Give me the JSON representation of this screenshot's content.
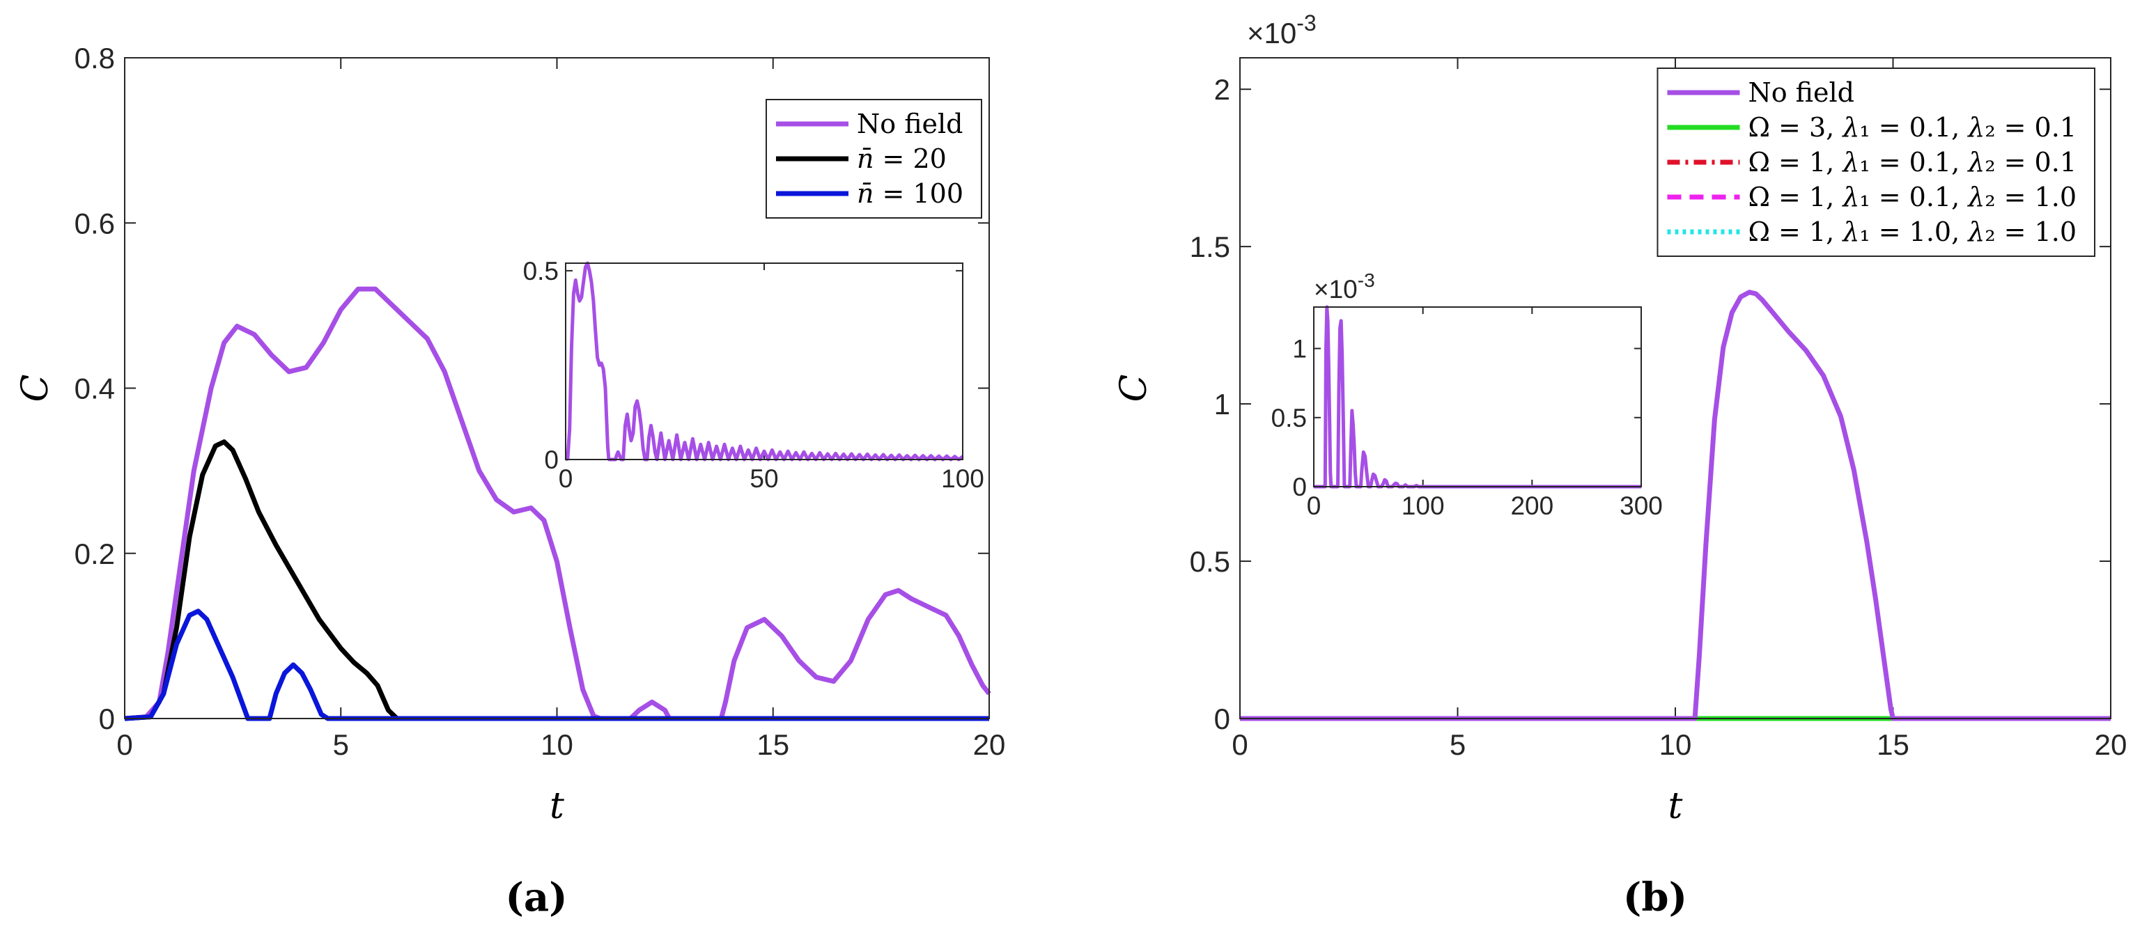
{
  "chart_data": [
    {
      "id": "a",
      "type": "line",
      "panel_label": "(a)",
      "xlabel": "t",
      "ylabel": "C",
      "xlim": [
        0,
        20
      ],
      "ylim": [
        0,
        0.8
      ],
      "xticks": [
        0,
        5,
        10,
        15,
        20
      ],
      "xtick_labels": [
        "0",
        "5",
        "10",
        "15",
        "20"
      ],
      "yticks": [
        0,
        0.2,
        0.4,
        0.6,
        0.8
      ],
      "ytick_labels": [
        "0",
        "0.2",
        "0.4",
        "0.6",
        "0.8"
      ],
      "legend_position": "top-right",
      "series": [
        {
          "name": "No field",
          "label_parts": [
            {
              "t": "No field",
              "it": false
            }
          ],
          "color": "#a64fe6",
          "dash": "",
          "x": [
            0,
            0.5,
            0.8,
            1.0,
            1.3,
            1.6,
            2.0,
            2.3,
            2.6,
            3.0,
            3.4,
            3.8,
            4.2,
            4.6,
            5.0,
            5.4,
            5.8,
            6.2,
            6.6,
            7.0,
            7.4,
            7.8,
            8.2,
            8.6,
            9.0,
            9.4,
            9.7,
            10.0,
            10.3,
            10.6,
            10.85,
            11.0,
            11.7,
            11.9,
            12.2,
            12.5,
            12.6,
            13.8,
            13.9,
            14.1,
            14.4,
            14.8,
            15.2,
            15.6,
            16.0,
            16.4,
            16.8,
            17.2,
            17.6,
            17.9,
            18.2,
            18.6,
            19.0,
            19.3,
            19.6,
            19.85,
            20.0
          ],
          "y": [
            0,
            0.002,
            0.02,
            0.08,
            0.19,
            0.3,
            0.4,
            0.455,
            0.475,
            0.465,
            0.44,
            0.42,
            0.425,
            0.455,
            0.495,
            0.52,
            0.52,
            0.5,
            0.48,
            0.46,
            0.42,
            0.36,
            0.3,
            0.265,
            0.25,
            0.255,
            0.24,
            0.19,
            0.11,
            0.035,
            0.003,
            0,
            0,
            0.01,
            0.02,
            0.01,
            0,
            0,
            0.02,
            0.07,
            0.11,
            0.12,
            0.1,
            0.07,
            0.05,
            0.045,
            0.07,
            0.12,
            0.15,
            0.155,
            0.145,
            0.135,
            0.125,
            0.1,
            0.065,
            0.04,
            0.03
          ]
        },
        {
          "name": "n = 20",
          "label_parts": [
            {
              "t": "n̄",
              "it": true
            },
            {
              "t": " = 20",
              "it": false
            }
          ],
          "color": "#000000",
          "dash": "",
          "x": [
            0,
            0.6,
            0.9,
            1.2,
            1.5,
            1.8,
            2.1,
            2.3,
            2.5,
            2.8,
            3.1,
            3.5,
            4.0,
            4.5,
            5.0,
            5.3,
            5.6,
            5.85,
            6.1,
            6.3,
            20
          ],
          "y": [
            0,
            0.002,
            0.03,
            0.11,
            0.22,
            0.295,
            0.33,
            0.335,
            0.325,
            0.29,
            0.25,
            0.21,
            0.165,
            0.12,
            0.085,
            0.068,
            0.055,
            0.04,
            0.01,
            0,
            0
          ]
        },
        {
          "name": "n = 100",
          "label_parts": [
            {
              "t": "n̄",
              "it": true
            },
            {
              "t": " = 100",
              "it": false
            }
          ],
          "color": "#0a16d9",
          "dash": "",
          "x": [
            0,
            0.6,
            0.9,
            1.2,
            1.5,
            1.7,
            1.9,
            2.2,
            2.5,
            2.85,
            3.0,
            3.35,
            3.5,
            3.7,
            3.9,
            4.1,
            4.3,
            4.55,
            4.7,
            20
          ],
          "y": [
            0,
            0.002,
            0.03,
            0.09,
            0.125,
            0.13,
            0.12,
            0.085,
            0.05,
            0,
            0,
            0,
            0.03,
            0.055,
            0.065,
            0.055,
            0.035,
            0.005,
            0,
            0
          ]
        }
      ],
      "inset": {
        "xlim": [
          0,
          100
        ],
        "ylim": [
          0,
          0.52
        ],
        "xticks": [
          0,
          50,
          100
        ],
        "xtick_labels": [
          "0",
          "50",
          "100"
        ],
        "yticks": [
          0,
          0.5
        ],
        "ytick_labels": [
          "0",
          "0.5"
        ],
        "series": [
          {
            "name": "No field",
            "color": "#a64fe6",
            "x": [
              0,
              0.5,
              1.0,
              1.5,
              2.0,
              2.5,
              3.0,
              3.5,
              4.0,
              4.5,
              5.0,
              5.5,
              6.0,
              6.5,
              7.0,
              7.5,
              8.0,
              8.5,
              9.0,
              9.5,
              10.0,
              10.3,
              10.6,
              10.85,
              11.0,
              12.5,
              12.8,
              13.2,
              13.6,
              14.0,
              14.5,
              15.0,
              15.5,
              16.0,
              16.5,
              17.0,
              17.5,
              18.0,
              18.5,
              19.0,
              19.5,
              20.0,
              20.5,
              21.0,
              21.5,
              22.0,
              22.5,
              23.0,
              24.0,
              25.0,
              26.0,
              27.0,
              28.0,
              29.0,
              30.0,
              31.0,
              32.0,
              33.0,
              34.0,
              35.0,
              36.0,
              37.0,
              38.0,
              39.0,
              40.0,
              41.0,
              42.0,
              43.0,
              44.0,
              45.0,
              46.0,
              47.0,
              48.0,
              49.0,
              50.0,
              51.0,
              52.0,
              53.0,
              54.0,
              55.0,
              56.0,
              57.0,
              58.0,
              59.0,
              60.0,
              61.0,
              62.0,
              63.0,
              64.0,
              65.0,
              66.0,
              67.0,
              68.0,
              69.0,
              70.0,
              71.0,
              72.0,
              73.0,
              74.0,
              75.0,
              76.0,
              77.0,
              78.0,
              79.0,
              80.0,
              81.0,
              82.0,
              83.0,
              84.0,
              85.0,
              86.0,
              87.0,
              88.0,
              89.0,
              90.0,
              91.0,
              92.0,
              93.0,
              94.0,
              95.0,
              96.0,
              97.0,
              98.0,
              99.0,
              100.0
            ],
            "y": [
              0,
              0.002,
              0.08,
              0.3,
              0.44,
              0.475,
              0.44,
              0.42,
              0.43,
              0.47,
              0.51,
              0.52,
              0.5,
              0.47,
              0.42,
              0.34,
              0.27,
              0.25,
              0.255,
              0.24,
              0.19,
              0.11,
              0.035,
              0.003,
              0,
              0,
              0.01,
              0.02,
              0.01,
              0,
              0,
              0.09,
              0.12,
              0.08,
              0.05,
              0.07,
              0.14,
              0.155,
              0.13,
              0.09,
              0.03,
              0,
              0,
              0.06,
              0.09,
              0.06,
              0.02,
              0,
              0.07,
              0,
              0.05,
              0,
              0.065,
              0,
              0.045,
              0,
              0.055,
              0,
              0.04,
              0,
              0.045,
              0,
              0.035,
              0,
              0.04,
              0,
              0.03,
              0,
              0.035,
              0,
              0.025,
              0,
              0.03,
              0,
              0.022,
              0,
              0.025,
              0,
              0.02,
              0,
              0.022,
              0,
              0.018,
              0,
              0.02,
              0,
              0.016,
              0,
              0.018,
              0,
              0.015,
              0,
              0.016,
              0,
              0.014,
              0,
              0.015,
              0,
              0.013,
              0,
              0.014,
              0,
              0.012,
              0,
              0.013,
              0,
              0.011,
              0,
              0.012,
              0,
              0.01,
              0,
              0.011,
              0,
              0.01,
              0,
              0.01,
              0,
              0.009,
              0,
              0.009,
              0,
              0.008,
              0,
              0.008
            ]
          }
        ]
      }
    },
    {
      "id": "b",
      "type": "line",
      "panel_label": "(b)",
      "xlabel": "t",
      "ylabel": "C",
      "exponent_label": "×10",
      "exponent_power": "-3",
      "xlim": [
        0,
        20
      ],
      "ylim": [
        0,
        2.1
      ],
      "xticks": [
        0,
        5,
        10,
        15,
        20
      ],
      "xtick_labels": [
        "0",
        "5",
        "10",
        "15",
        "20"
      ],
      "yticks": [
        0,
        0.5,
        1,
        1.5,
        2
      ],
      "ytick_labels": [
        "0",
        "0.5",
        "1",
        "1.5",
        "2"
      ],
      "legend_position": "top-right",
      "series": [
        {
          "name": "No field",
          "label_parts": [
            {
              "t": "No field",
              "it": false
            }
          ],
          "color": "#a64fe6",
          "dash": "",
          "x": [
            0,
            10.45,
            10.55,
            10.7,
            10.9,
            11.1,
            11.3,
            11.5,
            11.7,
            11.85,
            12.0,
            12.3,
            12.6,
            13.0,
            13.4,
            13.8,
            14.1,
            14.4,
            14.6,
            14.8,
            14.95,
            15.0,
            20
          ],
          "y": [
            0,
            0,
            0.2,
            0.55,
            0.95,
            1.18,
            1.29,
            1.34,
            1.355,
            1.35,
            1.33,
            1.28,
            1.23,
            1.17,
            1.09,
            0.96,
            0.79,
            0.56,
            0.38,
            0.18,
            0.03,
            0,
            0
          ]
        },
        {
          "name": "Ω = 3, λ1 = 0.1, λ2 = 0.1",
          "label_parts": [
            {
              "t": "Ω = 3,  ",
              "it": false
            },
            {
              "t": "λ",
              "it": true
            },
            {
              "t": "₁ = 0.1,  ",
              "it": false
            },
            {
              "t": "λ",
              "it": true
            },
            {
              "t": "₂ = 0.1",
              "it": false
            }
          ],
          "color": "#22dd22",
          "dash": "",
          "x": [
            0,
            20
          ],
          "y": [
            0,
            0
          ]
        },
        {
          "name": "Ω = 1, λ1 = 0.1, λ2 = 0.1",
          "label_parts": [
            {
              "t": "Ω = 1,  ",
              "it": false
            },
            {
              "t": "λ",
              "it": true
            },
            {
              "t": "₁ = 0.1,  ",
              "it": false
            },
            {
              "t": "λ",
              "it": true
            },
            {
              "t": "₂ = 0.1",
              "it": false
            }
          ],
          "color": "#e0102a",
          "dash": "18,8,4,8",
          "x": [
            0,
            20
          ],
          "y": [
            0,
            0
          ]
        },
        {
          "name": "Ω = 1, λ1 = 0.1, λ2 = 1.0",
          "label_parts": [
            {
              "t": "Ω = 1,  ",
              "it": false
            },
            {
              "t": "λ",
              "it": true
            },
            {
              "t": "₁ = 0.1,  ",
              "it": false
            },
            {
              "t": "λ",
              "it": true
            },
            {
              "t": "₂ = 1.0",
              "it": false
            }
          ],
          "color": "#ee22ee",
          "dash": "20,12",
          "x": [
            0,
            20
          ],
          "y": [
            0,
            0
          ]
        },
        {
          "name": "Ω = 1, λ1 = 1.0, λ2 = 1.0",
          "label_parts": [
            {
              "t": "Ω = 1,  ",
              "it": false
            },
            {
              "t": "λ",
              "it": true
            },
            {
              "t": "₁ = 1.0,  ",
              "it": false
            },
            {
              "t": "λ",
              "it": true
            },
            {
              "t": "₂ = 1.0",
              "it": false
            }
          ],
          "color": "#22e6e6",
          "dash": "5,6",
          "x": [
            0,
            20
          ],
          "y": [
            0,
            0
          ]
        }
      ],
      "inset": {
        "xlim": [
          0,
          300
        ],
        "ylim": [
          0,
          1.3
        ],
        "xticks": [
          0,
          100,
          200,
          300
        ],
        "xtick_labels": [
          "0",
          "100",
          "200",
          "300"
        ],
        "yticks": [
          0,
          0.5,
          1
        ],
        "ytick_labels": [
          "0",
          "0.5",
          "1"
        ],
        "exponent_label": "×10",
        "exponent_power": "-3",
        "series": [
          {
            "name": "No field",
            "color": "#a64fe6",
            "x": [
              0,
              10.4,
              11.2,
              12.0,
              12.8,
              13.6,
              14.4,
              15.2,
              15.8,
              22.0,
              23.0,
              24.0,
              25.0,
              26.0,
              27.0,
              28.0,
              33.0,
              34.0,
              35.0,
              36.0,
              37.0,
              38.0,
              39.0,
              43.0,
              44.0,
              45.5,
              47.0,
              48.5,
              50.0,
              52.0,
              53.0,
              54.5,
              56.0,
              57.5,
              59.0,
              62.0,
              63.5,
              65.0,
              66.5,
              68.0,
              72.0,
              73.5,
              75.0,
              76.5,
              78.0,
              82.0,
              84.0,
              86.0,
              92.0,
              94.0,
              96.0,
              100.0,
              300.0
            ],
            "y": [
              0,
              0,
              1.0,
              1.3,
              1.2,
              0.9,
              0.5,
              0.1,
              0,
              0,
              0.7,
              1.15,
              1.2,
              0.95,
              0.5,
              0,
              0,
              0.3,
              0.55,
              0.45,
              0.3,
              0.1,
              0,
              0,
              0.12,
              0.25,
              0.22,
              0.1,
              0,
              0,
              0.04,
              0.09,
              0.08,
              0.04,
              0,
              0,
              0.02,
              0.05,
              0.04,
              0,
              0,
              0.015,
              0.025,
              0.02,
              0,
              0,
              0.012,
              0,
              0,
              0.008,
              0,
              0,
              0
            ]
          }
        ]
      }
    }
  ]
}
